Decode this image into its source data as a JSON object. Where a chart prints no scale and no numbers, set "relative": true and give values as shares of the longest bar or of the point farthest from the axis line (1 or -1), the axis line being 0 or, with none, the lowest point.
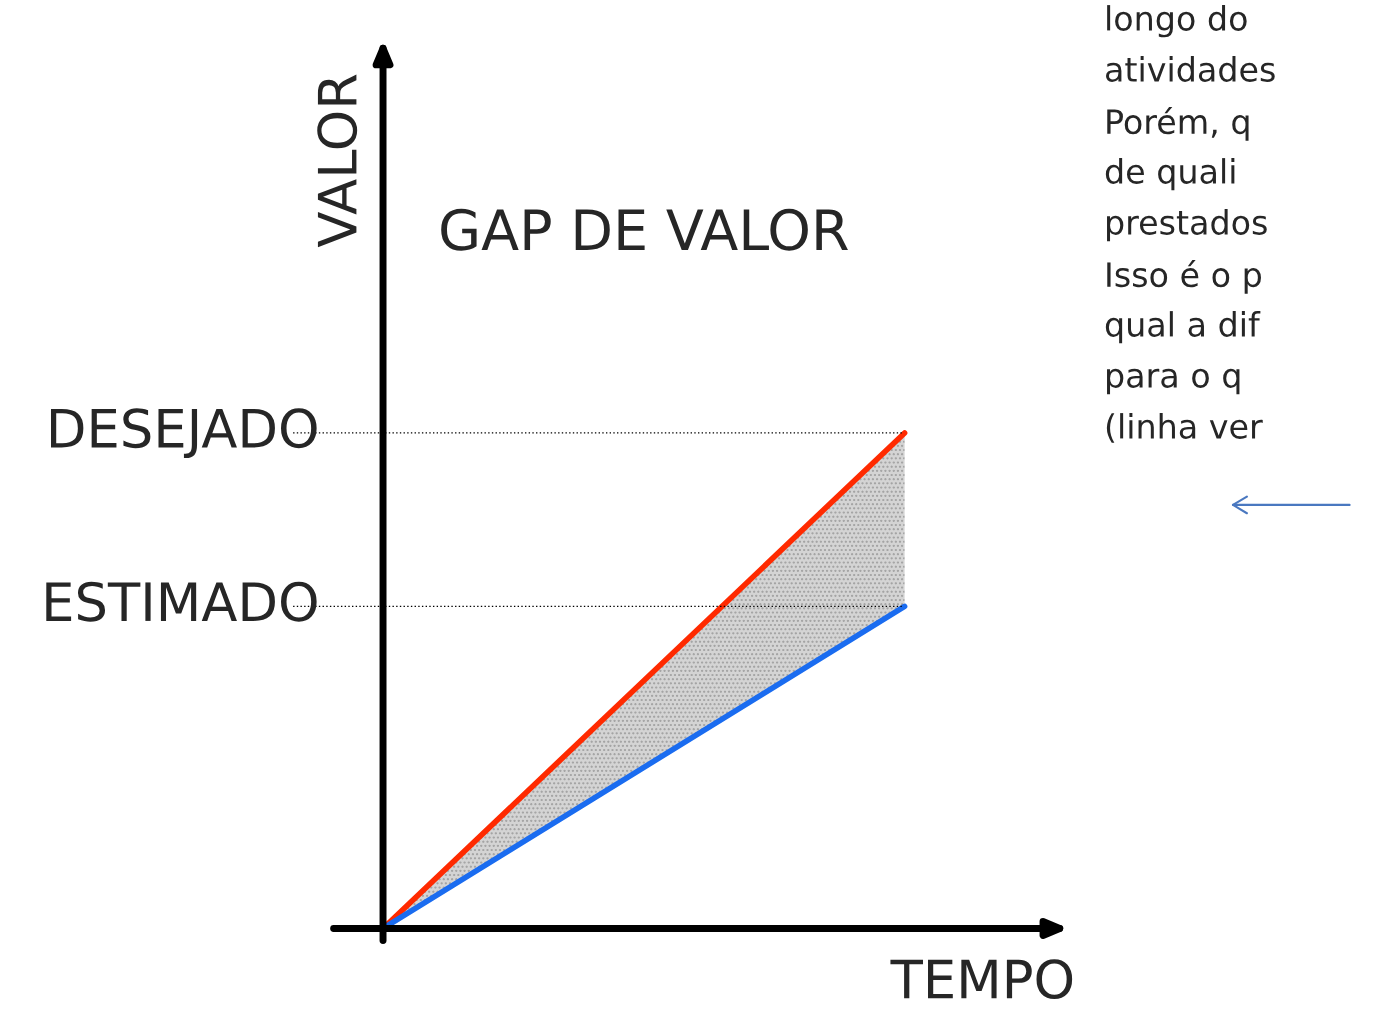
{
  "chart_data": {
    "type": "line",
    "title": "GAP DE VALOR",
    "xlabel": "TEMPO",
    "ylabel": "VALOR",
    "relative": true,
    "categories": [
      null,
      null
    ],
    "series": [
      {
        "color": "#ff2a00",
        "values": [
          0,
          1
        ],
        "lower": [
          0,
          0.65
        ],
        "upper": [
          0,
          1
        ]
      },
      {
        "color": "#1a6cf0",
        "values": [
          0,
          0.65
        ]
      }
    ],
    "ref_lines": [
      {
        "axis": "y",
        "value": 1,
        "label": "DESEJADO",
        "line_style": "dotted",
        "color": "#000000"
      },
      {
        "axis": "y",
        "value": 0.65,
        "label": "ESTIMADO",
        "line_style": "dotted",
        "color": "#000000"
      }
    ],
    "annotations": [
      "longo do",
      "atividades",
      "Porém, q",
      "de quali",
      "prestados",
      "Isso é o p",
      "qual a dif",
      "para o q",
      "(linha ver"
    ],
    "legend": false
  }
}
